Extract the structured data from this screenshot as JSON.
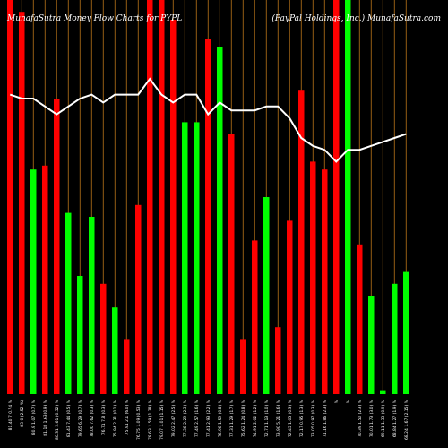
{
  "header": {
    "left": "MunafaSutra  Money Flow  Charts for PYPL",
    "right": "(PayPal Holdings, Inc.) MunafaSutra.com"
  },
  "colors": {
    "up": "#00ff00",
    "down": "#ff0000",
    "grid": "#b8741a",
    "line": "#ffffff",
    "background": "#000000"
  },
  "chart_data": {
    "type": "bar",
    "grid": true,
    "categories": [
      "Fri 18 Oct",
      "Thu 17 Oct",
      "Wed 16 Oct",
      "Tue 15 Oct",
      "Mon 14 Oct",
      "Fri 11 Oct",
      "Thu 10 Oct",
      "Wed 09 Oct",
      "Tue 08 Oct",
      "Mon 07 Oct",
      "Fri 04 Oct",
      "Thu 03 Oct",
      "Wed 02 Oct",
      "Tue 01 Oct",
      "Mon 30 Sep",
      "Fri 27 Sep",
      "Thu 26 Sep",
      "Wed 25 Sep",
      "Tue 24 Sep",
      "Mon 23 Sep",
      "Fri 20 Sep",
      "Thu 19 Sep",
      "Wed 18 Sep",
      "Tue 17 Sep",
      "Mon 16 Sep",
      "Fri 13 Sep",
      "Thu 12 Sep",
      "Wed 11 Sep",
      "Tue 10 Sep",
      "Mon 09 Sep",
      "Fri 06 Sep",
      "Thu 05 Sep",
      "Wed 04 Sep",
      "Tue 03 Sep",
      "Fri 30 Aug",
      "Thu 29 Aug",
      "Wed 28 Aug",
      "Tue 27 Aug",
      "Mon 26 Aug",
      "Fri 23 Aug",
      "Thu 22 Aug",
      "Wed 21 Aug",
      "Tue 20 Aug",
      "Mon 19 Aug",
      "Fri 16 Aug",
      "Thu 15 Aug",
      "Wed 14 Aug",
      "Tue 13 Aug",
      "Mon 12 Aug",
      "Fri 09 Aug",
      "Thu 08 Aug",
      "Wed 07 Aug"
    ],
    "x_labels": [
      "81.40 7 0.74 %",
      "83 0 (2.52 %)",
      "80.9 1.07 (0.7) %",
      "81.18 1.63(0.9) %",
      "80.31 2.61 (0.52) %",
      "81.43 7.44 (0.5) %",
      "79.65 6.29 (0.7) %",
      "78.00 7.62 (0.3) %",
      "76.71 7.8 (0.3) %",
      "75.94 2.31 (0.1) %",
      "75.91 2.1 (6.0) %",
      "76.75 1.09 (0.53) %",
      "78.63 1.59 (1.28) %",
      "79.07 1.01 (1.15) %",
      "79.02 2.47 (2.5) %",
      "77.38 2.29 (2.3) %",
      "77.49 2.57 (1.6) %",
      "77.41 2.93 (2.2) %",
      "76.98 1.59 (0.8) %",
      "77.31 1.29 (1.7) %",
      "75.62 1.24 (0.8) %",
      "74.91 2.02 (1.2) %",
      "72.71 1.13 (1.0) %",
      "73.90 5.21 (1.6) %",
      "72.45 1.05 (0.3) %",
      "72.17 0.95 (1.3) %",
      "73.05 0.97 (0.3) %",
      "71.16 1.86 (2.3) %",
      "%",
      "%",
      "70.39 1.50 (2.3) %",
      "70.01 1.73 (3.0) %",
      "69.11 1.33 (0.9) %",
      "68.84 1.27 (1.9) %",
      "68.24 1.67 (2.15) %",
      "69.75 2.27 (2.5) %",
      "68.26 1.82 (0.7) %",
      "67.32 0.24 (0.6) %",
      "67.81 1.37 (0.6) %",
      "67.81 1.58 (0.8) %",
      "67.18 0.85 (1.7) %",
      "68.76 1.09 (0.5) %",
      "68.03 1.36 (1.1) %",
      "67.91 1.01 (1.0) %",
      "68.23 0.92 (1.8) %",
      "66.78 1.41 (0.6) %",
      "67.42 0.65 (0.9) %",
      "66.09 0.62 (1.3) %",
      "67.42 2.02 (2.0) %",
      "66.43 0.58 (0.9) %",
      "64.90 0.82 (2.0) %",
      "63.99 0.69 (2.5) %"
    ],
    "series": [
      {
        "type": "bar",
        "values": [
          100,
          97,
          57,
          58,
          75,
          46,
          30,
          45,
          28,
          22,
          14,
          48,
          100,
          100,
          95,
          69,
          69,
          90,
          88,
          66,
          14,
          39,
          50,
          17,
          44,
          77,
          59,
          57,
          100,
          100,
          38,
          25,
          1,
          28,
          31,
          2,
          35,
          16,
          0,
          0,
          0,
          0,
          0,
          0,
          0,
          0,
          0,
          0,
          0,
          0,
          0,
          0
        ],
        "colors": [
          "down",
          "down",
          "up",
          "down",
          "down",
          "up",
          "up",
          "up",
          "down",
          "up",
          "down",
          "down",
          "down",
          "down",
          "down",
          "up",
          "up",
          "down",
          "up",
          "down",
          "down",
          "down",
          "up",
          "down",
          "down",
          "down",
          "down",
          "down",
          "down",
          "up",
          "down",
          "up",
          "up",
          "up",
          "up",
          "up",
          "up",
          "up",
          "up",
          "up",
          "up",
          "up",
          "up",
          "up",
          "up",
          "up",
          "up",
          "up",
          "up",
          "up",
          "up",
          "up"
        ]
      },
      {
        "type": "line",
        "values": [
          76,
          75,
          75,
          73,
          71,
          73,
          75,
          76,
          74,
          76,
          76,
          76,
          80,
          76,
          74,
          76,
          76,
          71,
          74,
          72,
          72,
          72,
          73,
          73,
          70,
          65,
          63,
          62,
          59,
          62,
          62,
          63,
          64,
          65,
          66,
          66,
          66,
          64,
          65,
          65,
          65,
          65,
          65,
          65,
          65,
          65,
          65,
          65,
          65,
          65,
          65,
          65
        ]
      }
    ],
    "ylim": [
      0,
      100
    ]
  }
}
